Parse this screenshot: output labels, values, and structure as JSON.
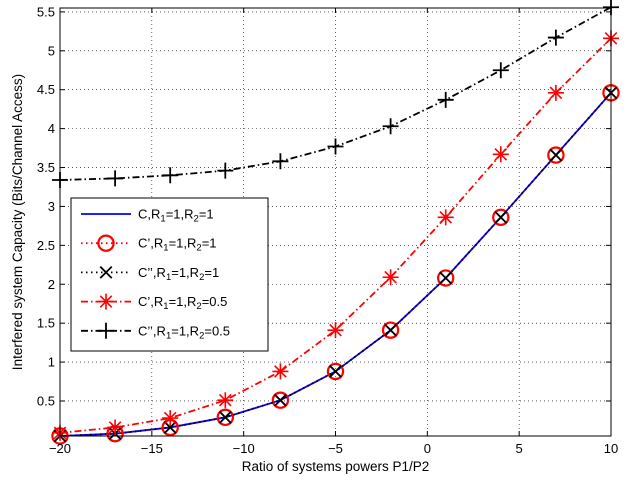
{
  "chart_data": {
    "type": "line",
    "xlabel": "Ratio of systems powers P1/P2",
    "ylabel": "Interfered system Capacity (Bits/Channel Access)",
    "xlim": [
      -20,
      10
    ],
    "ylim": [
      0.05,
      5.55
    ],
    "xticks": [
      -20,
      -15,
      -10,
      -5,
      0,
      5,
      10
    ],
    "xtick_labels": [
      "−20",
      "−15",
      "−10",
      "−5",
      "0",
      "5",
      "10"
    ],
    "yticks": [
      0.5,
      1,
      1.5,
      2,
      2.5,
      3,
      3.5,
      4,
      4.5,
      5,
      5.5
    ],
    "ytick_labels": [
      "0.5",
      "1",
      "1.5",
      "2",
      "2.5",
      "3",
      "3.5",
      "4",
      "4.5",
      "5",
      "5.5"
    ],
    "grid": true,
    "legend_position": "middle-left",
    "x": [
      -20,
      -17,
      -14,
      -11,
      -8,
      -5,
      -2,
      1,
      4,
      7,
      10
    ],
    "series": [
      {
        "legend": [
          "C,R",
          "1",
          "=1,R",
          "2",
          "=1"
        ],
        "color": "#0000ff",
        "dash": "solid",
        "marker": "none",
        "values": [
          0.05,
          0.08,
          0.16,
          0.29,
          0.51,
          0.88,
          1.41,
          2.08,
          2.86,
          3.66,
          4.46
        ]
      },
      {
        "legend": [
          "C’,R",
          "1",
          "=1,R",
          "2",
          "=1"
        ],
        "color": "#ff0000",
        "dash": "dotted",
        "marker": "circle",
        "values": [
          0.05,
          0.08,
          0.16,
          0.29,
          0.51,
          0.88,
          1.41,
          2.08,
          2.86,
          3.66,
          4.46
        ]
      },
      {
        "legend": [
          "C’’,R",
          "1",
          "=1,R",
          "2",
          "=1"
        ],
        "color": "#000000",
        "dash": "dotted",
        "marker": "x",
        "values": [
          0.05,
          0.08,
          0.16,
          0.29,
          0.51,
          0.88,
          1.41,
          2.08,
          2.86,
          3.66,
          4.46
        ]
      },
      {
        "legend": [
          "C’,R",
          "1",
          "=1,R",
          "2",
          "=0.5"
        ],
        "color": "#ff0000",
        "dash": "dashdot",
        "marker": "asterisk",
        "values": [
          0.09,
          0.16,
          0.28,
          0.51,
          0.88,
          1.41,
          2.09,
          2.86,
          3.67,
          4.46,
          5.16
        ]
      },
      {
        "legend": [
          "C’’,R",
          "1",
          "=1,R",
          "2",
          "=0.5"
        ],
        "color": "#000000",
        "dash": "dashdot",
        "marker": "plus",
        "values": [
          3.34,
          3.36,
          3.4,
          3.46,
          3.58,
          3.77,
          4.03,
          4.37,
          4.75,
          5.17,
          5.56
        ]
      }
    ]
  }
}
